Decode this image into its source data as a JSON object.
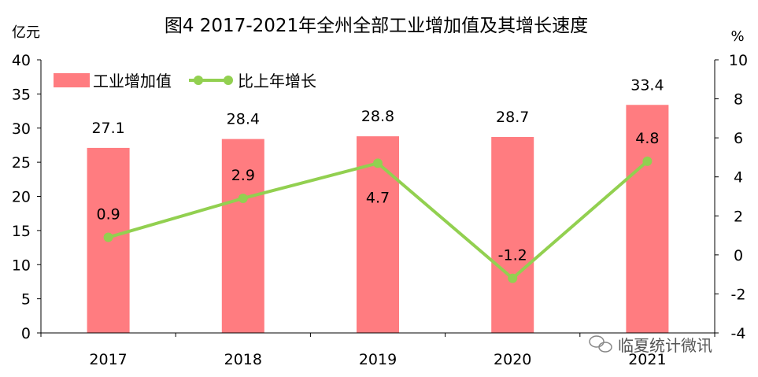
{
  "chart_data": {
    "type": "bar+line",
    "title": "图4  2017-2021年全州全部工业增加值及其增长速度",
    "ylabel_left": "亿元",
    "ylabel_right": "%",
    "categories": [
      "2017",
      "2018",
      "2019",
      "2020",
      "2021"
    ],
    "ylim_left": [
      0,
      40
    ],
    "yticks_left": [
      0,
      5,
      10,
      15,
      20,
      25,
      30,
      35,
      40
    ],
    "ylim_right": [
      -4,
      10
    ],
    "yticks_right": [
      -4,
      -2,
      0,
      2,
      4,
      6,
      8,
      10
    ],
    "grid": false,
    "legend_position": "top-left",
    "series": [
      {
        "name": "工业增加值",
        "type": "bar",
        "axis": "left",
        "color": "#FF7C80",
        "values": [
          27.1,
          28.4,
          28.8,
          28.7,
          33.4
        ]
      },
      {
        "name": "比上年增长",
        "type": "line",
        "axis": "right",
        "color": "#92D050",
        "values": [
          0.9,
          2.9,
          4.7,
          -1.2,
          4.8
        ]
      }
    ]
  },
  "watermark": "临夏统计微讯"
}
